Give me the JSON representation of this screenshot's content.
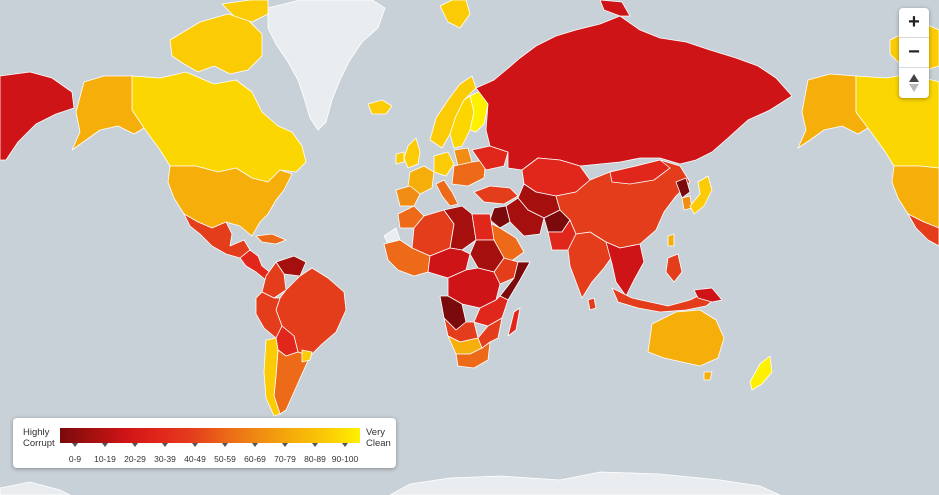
{
  "legend": {
    "left_line1": "Highly",
    "left_line2": "Corrupt",
    "right_line1": "Very",
    "right_line2": "Clean",
    "bins": [
      {
        "label": "0-9",
        "color": "#7a0a0c"
      },
      {
        "label": "10-19",
        "color": "#a5100f"
      },
      {
        "label": "20-29",
        "color": "#cf1417"
      },
      {
        "label": "30-39",
        "color": "#e1261b"
      },
      {
        "label": "40-49",
        "color": "#e43d1c"
      },
      {
        "label": "50-59",
        "color": "#ec6a18"
      },
      {
        "label": "60-69",
        "color": "#f08d12"
      },
      {
        "label": "70-79",
        "color": "#f6ae0b"
      },
      {
        "label": "80-89",
        "color": "#fbcb06"
      },
      {
        "label": "90-100",
        "color": "#fff000"
      }
    ]
  },
  "zoom": {
    "in_label": "+",
    "out_label": "−",
    "reset_icon": "compass-reset-icon"
  },
  "colors": {
    "ocean": "#c9d1d8",
    "ice": "#eaedf0",
    "border": "#ffffff"
  }
}
